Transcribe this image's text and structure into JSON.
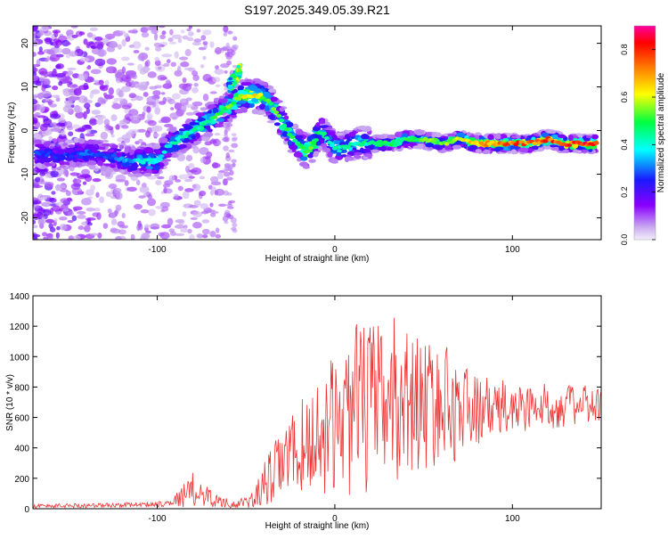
{
  "chart_data": [
    {
      "type": "heatmap",
      "title": "S197.2025.349.05.39.R21",
      "xlabel": "Height of straight line (km)",
      "ylabel": "Frequency (Hz)",
      "xlim": [
        -170,
        150
      ],
      "ylim": [
        -25,
        24
      ],
      "x_ticks": [
        -100,
        0,
        100
      ],
      "x_tick_labels": [
        "-100",
        "0",
        "100"
      ],
      "y_ticks": [
        -20,
        -10,
        0,
        10,
        20
      ],
      "y_tick_labels": [
        "-20",
        "-10",
        "0",
        "10",
        "20"
      ],
      "ridge": {
        "x": [
          -168,
          -155,
          -140,
          -125,
          -115,
          -105,
          -100,
          -95,
          -88,
          -80,
          -72,
          -65,
          -58,
          -53,
          -50,
          -46,
          -42,
          -38,
          -33,
          -27,
          -21,
          -16,
          -12,
          -8,
          -4,
          0,
          5,
          12,
          20,
          30,
          40,
          50,
          60,
          70,
          80,
          90,
          100,
          110,
          120,
          130,
          140,
          147
        ],
        "y": [
          -5,
          -6,
          -5,
          -6,
          -7,
          -7,
          -7,
          -4,
          -2,
          0,
          2,
          4,
          6,
          8,
          8,
          8,
          8,
          7,
          4,
          0,
          -3,
          -5,
          -3,
          0,
          -2,
          -4,
          -4,
          -3,
          -3,
          -3,
          -2,
          -2,
          -3,
          -2,
          -3,
          -3,
          -3,
          -3,
          -2,
          -3,
          -3,
          -3
        ],
        "amplitude": [
          0.3,
          0.25,
          0.3,
          0.3,
          0.35,
          0.45,
          0.4,
          0.4,
          0.45,
          0.45,
          0.5,
          0.5,
          0.55,
          0.6,
          0.65,
          0.65,
          0.6,
          0.55,
          0.55,
          0.5,
          0.5,
          0.6,
          0.55,
          0.5,
          0.45,
          0.45,
          0.45,
          0.45,
          0.45,
          0.5,
          0.5,
          0.55,
          0.55,
          0.6,
          0.7,
          0.75,
          0.8,
          0.75,
          0.8,
          0.8,
          0.85,
          0.85
        ]
      },
      "upper_branch": {
        "x": [
          -60,
          -56,
          -53
        ],
        "y": [
          10,
          12,
          14
        ],
        "amplitude": [
          0.5,
          0.6,
          0.7
        ]
      },
      "colorbar": {
        "label": "Normalized spectral amplitude",
        "range": [
          0.0,
          0.9
        ],
        "ticks": [
          0.0,
          0.2,
          0.4,
          0.6,
          0.8
        ],
        "tick_labels": [
          "0.0",
          "0.2",
          "0.4",
          "0.6",
          "0.8"
        ],
        "colors": [
          "#f4eefb",
          "#8a00ff",
          "#1a1aff",
          "#00ffff",
          "#00ff40",
          "#ffff00",
          "#ff8000",
          "#ff0000",
          "#ff00a0"
        ]
      }
    },
    {
      "type": "line",
      "title": "",
      "xlabel": "Height of straight line (km)",
      "ylabel": "SNR (10 * v/v)",
      "xlim": [
        -170,
        150
      ],
      "ylim": [
        0,
        1400
      ],
      "x_ticks": [
        -100,
        0,
        100
      ],
      "x_tick_labels": [
        "-100",
        "0",
        "100"
      ],
      "y_ticks": [
        0,
        200,
        400,
        600,
        800,
        1000,
        1200,
        1400
      ],
      "y_tick_labels": [
        "0",
        "200",
        "400",
        "600",
        "800",
        "1000",
        "1200",
        "1400"
      ],
      "line_color": "#ee3333",
      "envelope": {
        "x": [
          -170,
          -150,
          -130,
          -110,
          -100,
          -95,
          -90,
          -85,
          -80,
          -75,
          -70,
          -65,
          -60,
          -55,
          -50,
          -45,
          -40,
          -35,
          -30,
          -25,
          -20,
          -15,
          -10,
          -5,
          0,
          5,
          10,
          15,
          20,
          25,
          30,
          35,
          40,
          45,
          50,
          55,
          60,
          65,
          70,
          75,
          80,
          90,
          100,
          110,
          120,
          130,
          140,
          150
        ],
        "center": [
          18,
          20,
          22,
          28,
          30,
          40,
          55,
          90,
          120,
          110,
          70,
          50,
          35,
          30,
          40,
          70,
          150,
          220,
          300,
          350,
          400,
          430,
          470,
          520,
          560,
          600,
          640,
          660,
          680,
          700,
          720,
          710,
          720,
          700,
          700,
          690,
          680,
          680,
          660,
          660,
          650,
          650,
          660,
          670,
          670,
          680,
          680,
          680
        ],
        "spread": [
          15,
          15,
          15,
          15,
          20,
          25,
          40,
          80,
          120,
          100,
          60,
          40,
          30,
          25,
          40,
          70,
          150,
          200,
          230,
          260,
          300,
          340,
          380,
          420,
          450,
          520,
          560,
          600,
          560,
          520,
          600,
          560,
          500,
          460,
          440,
          420,
          420,
          380,
          340,
          280,
          230,
          200,
          180,
          160,
          150,
          140,
          130,
          130
        ]
      }
    }
  ]
}
